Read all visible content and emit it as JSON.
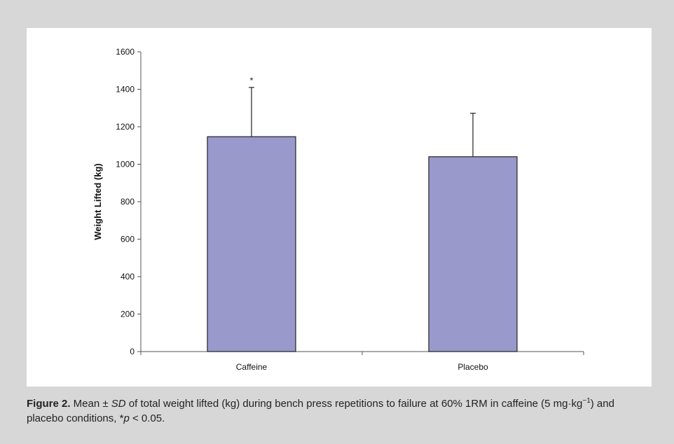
{
  "chart_data": {
    "type": "bar",
    "title": "",
    "xlabel": "",
    "ylabel": "Weight Lifted (kg)",
    "categories": [
      "Caffeine",
      "Placebo"
    ],
    "values": [
      1147,
      1040
    ],
    "error_sd": [
      263,
      232
    ],
    "annotations": [
      "*",
      ""
    ],
    "ylim": [
      0,
      1600
    ],
    "yticks": [
      0,
      200,
      400,
      600,
      800,
      1000,
      1200,
      1400,
      1600
    ],
    "grid": false,
    "legend": "none",
    "bar_color": "#9999cc",
    "bar_edge_color": "#222222"
  },
  "caption": {
    "label": "Figure 2.",
    "text_1": " Mean ± ",
    "sd": "SD",
    "text_2": " of total weight lifted (kg) during bench press repetitions to failure at 60% 1RM in caffeine (5 mg·kg",
    "sup": "−1",
    "text_3": ") and placebo conditions, *",
    "p": "p",
    "text_4": " < 0.05."
  },
  "colors": {
    "background": "#d7d7d8",
    "panel": "#ffffff",
    "bar": "#9999cc"
  }
}
